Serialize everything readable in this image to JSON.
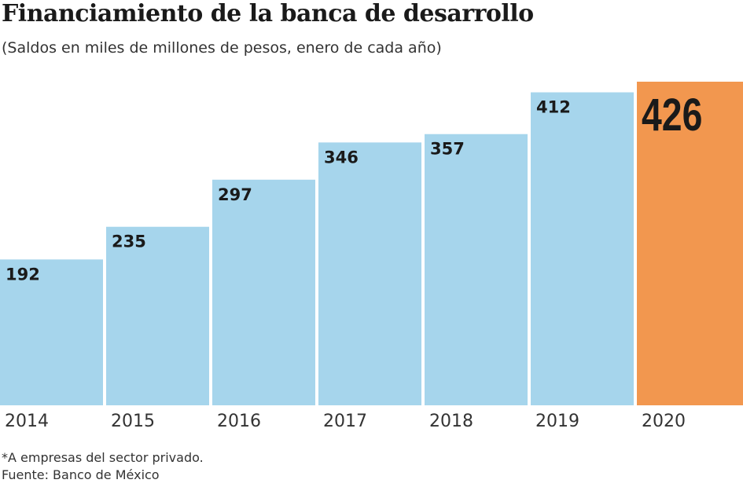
{
  "chart_data": {
    "type": "bar",
    "title": "Financiamiento de la banca de desarrollo",
    "subtitle": "(Saldos en miles de millones de pesos, enero de cada año)",
    "categories": [
      "2014",
      "2015",
      "2016",
      "2017",
      "2018",
      "2019",
      "2020"
    ],
    "values": [
      192,
      235,
      297,
      346,
      357,
      412,
      426
    ],
    "ylim": [
      0,
      426
    ],
    "grid": false,
    "colors": {
      "default": "#a6d5ec",
      "highlight": "#f2974f"
    },
    "highlight_index": 6,
    "footnote": "*A empresas del sector privado.",
    "source": "Fuente: Banco de México"
  }
}
